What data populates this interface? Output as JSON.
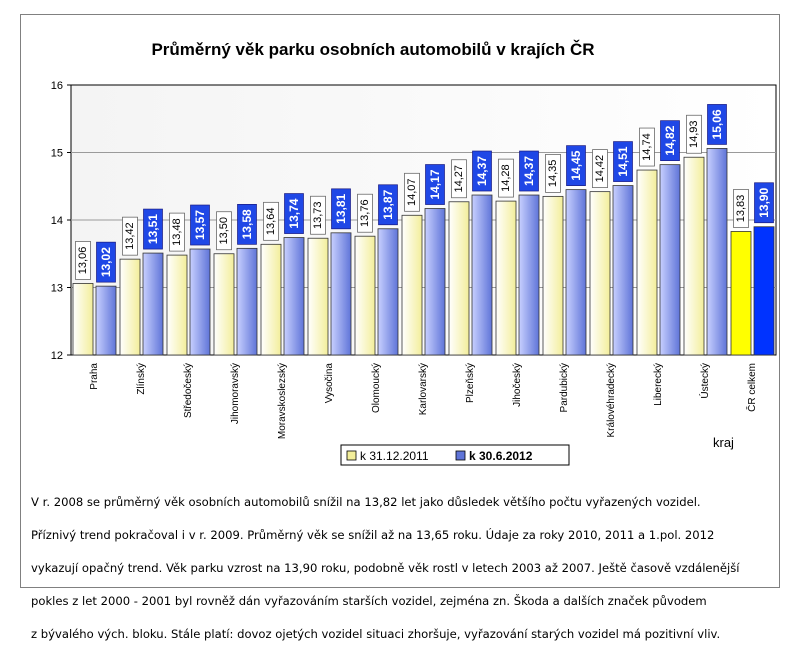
{
  "chart_data": {
    "type": "bar",
    "title": "Průměrný věk parku osobních automobilů v krajích ČR",
    "xlabel": "kraj",
    "ylabel": "",
    "ylim": [
      12,
      16
    ],
    "yticks": [
      "12",
      "13",
      "14",
      "15",
      "16"
    ],
    "grid": true,
    "legend_position": "bottom-center",
    "categories": [
      "Praha",
      "Zlínský",
      "Středočeský",
      "Jihomoravský",
      "Moravskoslezský",
      "Vysočina",
      "Olomoucký",
      "Karlovarský",
      "Plzeňský",
      "Jihočeský",
      "Pardubický",
      "Královéhradecký",
      "Liberecký",
      "Ústecký",
      "ČR celkem"
    ],
    "series": [
      {
        "name": "k 31.12.2011",
        "values": [
          13.06,
          13.42,
          13.48,
          13.5,
          13.64,
          13.73,
          13.76,
          14.07,
          14.27,
          14.28,
          14.35,
          14.42,
          14.74,
          14.93,
          13.83
        ],
        "labels": [
          "13,06",
          "13,42",
          "13,48",
          "13,50",
          "13,64",
          "13,73",
          "13,76",
          "14,07",
          "14,27",
          "14,28",
          "14,35",
          "14,42",
          "14,74",
          "14,93",
          "13,83"
        ],
        "color": "#f3ee9a",
        "highlight_color": "#ffff00"
      },
      {
        "name": "k 30.6.2012",
        "values": [
          13.02,
          13.51,
          13.57,
          13.58,
          13.74,
          13.81,
          13.87,
          14.17,
          14.37,
          14.37,
          14.45,
          14.51,
          14.82,
          15.06,
          13.9
        ],
        "labels": [
          "13,02",
          "13,51",
          "13,57",
          "13,58",
          "13,74",
          "13,81",
          "13,87",
          "14,17",
          "14,37",
          "14,37",
          "14,45",
          "14,51",
          "14,82",
          "15,06",
          "13,90"
        ],
        "color": "#5f74d8",
        "highlight_color": "#0033ff"
      }
    ],
    "highlight_category": "ČR celkem"
  },
  "caption": {
    "lines": [
      "V r. 2008 se průměrný věk osobních automobilů snížil na 13,82 let jako důsledek většího počtu vyřazených vozidel.",
      "Příznivý trend pokračoval i v r. 2009. Průměrný věk se snížil až na 13,65 roku. Údaje za roky 2010, 2011 a 1.pol. 2012",
      "vykazují opačný trend. Věk parku vzrost na 13,90 roku, podobně věk rostl v letech 2003 až 2007. Ještě časově vzdálenější",
      "pokles z let 2000 - 2001 byl rovněž dán vyřazováním starších vozidel, zejména zn. Škoda a dalších značek původem",
      "z bývalého vých. bloku. Stále platí: dovoz ojetých vozidel situaci zhoršuje, vyřazování starých vozidel má pozitivní vliv."
    ]
  }
}
